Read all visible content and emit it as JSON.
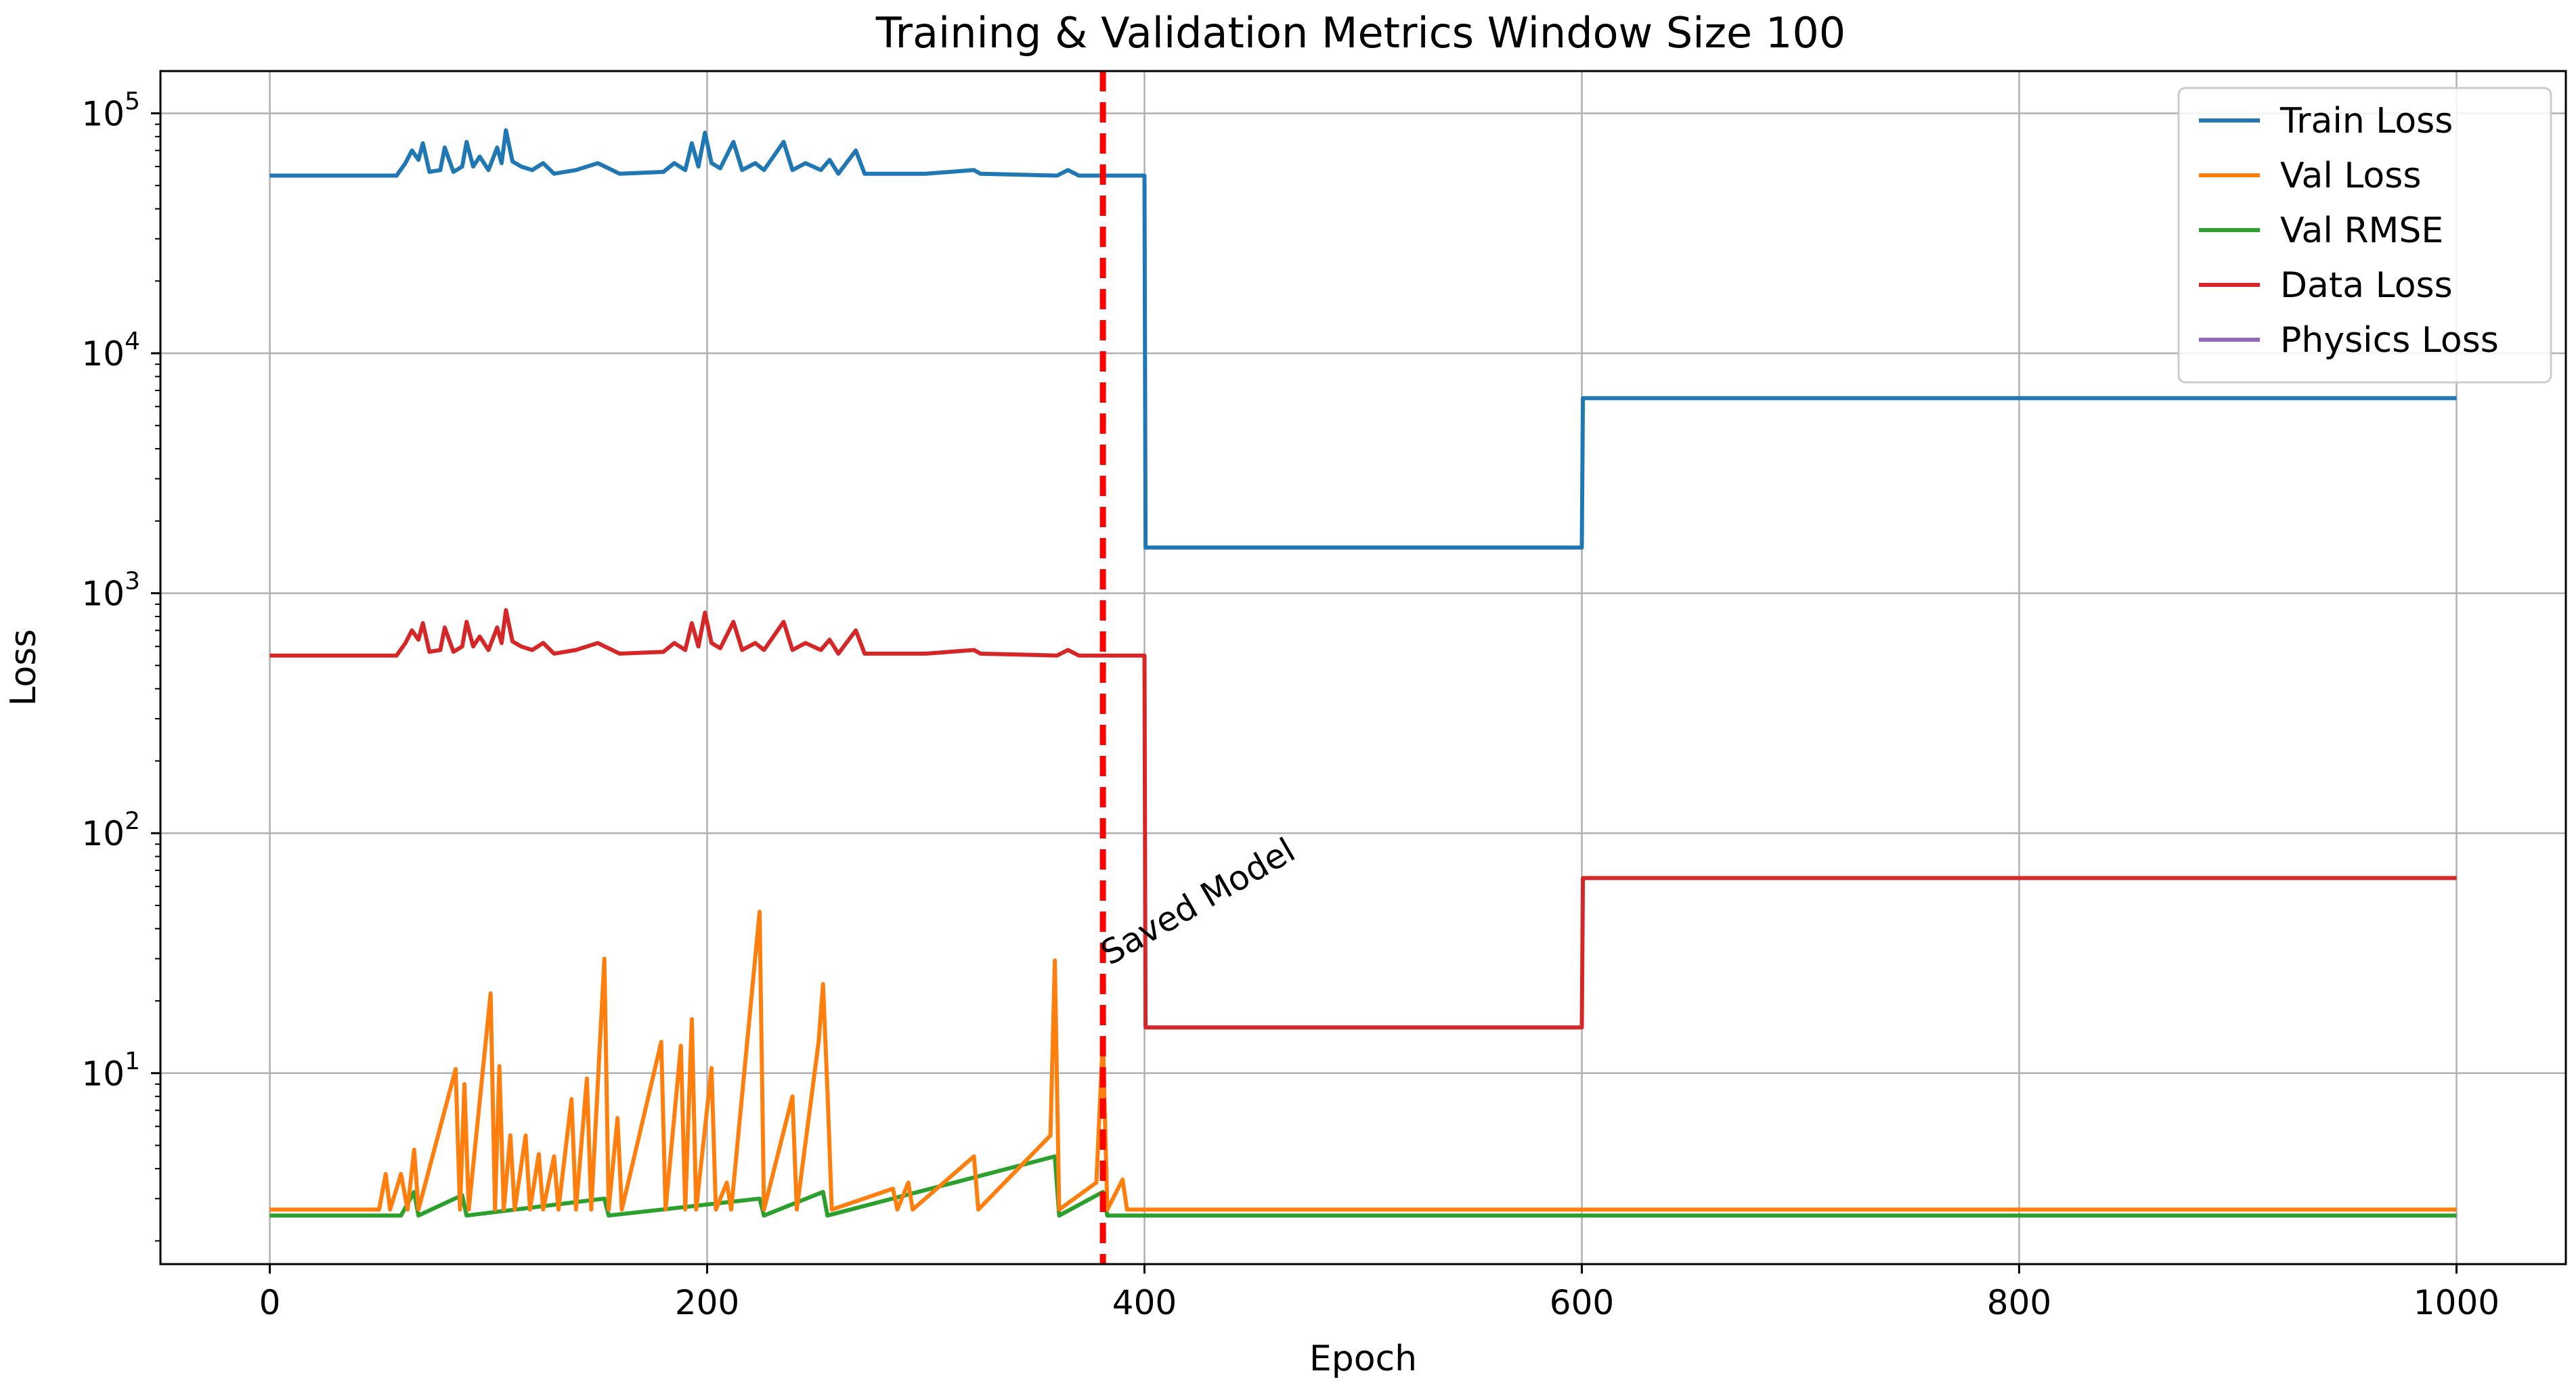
{
  "chart_data": {
    "type": "line",
    "title": "Training & Validation Metrics Window Size 100",
    "xlabel": "Epoch",
    "ylabel": "Loss",
    "yscale": "log",
    "xlim": [
      -50,
      1050
    ],
    "ylim": [
      1.6,
      150000
    ],
    "xticks": [
      0,
      200,
      400,
      600,
      800,
      1000
    ],
    "xtick_labels": [
      "0",
      "200",
      "400",
      "600",
      "800",
      "1000"
    ],
    "yticks": [
      10,
      100,
      1000,
      10000,
      100000
    ],
    "ytick_labels": [
      {
        "base": "10",
        "exp": "1"
      },
      {
        "base": "10",
        "exp": "2"
      },
      {
        "base": "10",
        "exp": "3"
      },
      {
        "base": "10",
        "exp": "4"
      },
      {
        "base": "10",
        "exp": "5"
      }
    ],
    "grid": true,
    "legend_position": "top-right",
    "colors": {
      "train_loss": "#1f77b4",
      "val_loss": "#ff7f0e",
      "val_rmse": "#2ca02c",
      "data_loss": "#d62728",
      "physics_loss": "#9467bd",
      "saved_line": "#ff0000"
    },
    "series": [
      {
        "name": "Train Loss",
        "color": "#1f77b4",
        "points": [
          [
            0,
            55000
          ],
          [
            58,
            55000
          ],
          [
            62,
            62000
          ],
          [
            65,
            70000
          ],
          [
            68,
            64000
          ],
          [
            70,
            75000
          ],
          [
            73,
            57000
          ],
          [
            78,
            58000
          ],
          [
            80,
            72000
          ],
          [
            84,
            57000
          ],
          [
            88,
            60000
          ],
          [
            90,
            76000
          ],
          [
            93,
            60000
          ],
          [
            96,
            66000
          ],
          [
            100,
            58000
          ],
          [
            104,
            72000
          ],
          [
            106,
            62000
          ],
          [
            108,
            85000
          ],
          [
            111,
            63000
          ],
          [
            115,
            60000
          ],
          [
            120,
            58000
          ],
          [
            125,
            62000
          ],
          [
            130,
            56000
          ],
          [
            140,
            58000
          ],
          [
            150,
            62000
          ],
          [
            160,
            56000
          ],
          [
            180,
            57000
          ],
          [
            185,
            62000
          ],
          [
            190,
            58000
          ],
          [
            193,
            75000
          ],
          [
            196,
            60000
          ],
          [
            199,
            83000
          ],
          [
            202,
            62000
          ],
          [
            206,
            59000
          ],
          [
            212,
            76000
          ],
          [
            216,
            58000
          ],
          [
            222,
            62000
          ],
          [
            226,
            58000
          ],
          [
            235,
            76000
          ],
          [
            239,
            58000
          ],
          [
            245,
            62000
          ],
          [
            252,
            58000
          ],
          [
            256,
            64000
          ],
          [
            260,
            56000
          ],
          [
            268,
            70000
          ],
          [
            272,
            56000
          ],
          [
            300,
            56000
          ],
          [
            322,
            58000
          ],
          [
            325,
            56000
          ],
          [
            360,
            55000
          ],
          [
            365,
            58000
          ],
          [
            370,
            55000
          ],
          [
            400,
            55000
          ],
          [
            400.5,
            1550
          ],
          [
            600,
            1550
          ],
          [
            600.5,
            6500
          ],
          [
            1000,
            6500
          ]
        ]
      },
      {
        "name": "Val Loss",
        "color": "#ff7f0e",
        "points": [
          [
            0,
            2.7
          ],
          [
            50,
            2.7
          ],
          [
            53,
            3.8
          ],
          [
            55,
            2.7
          ],
          [
            60,
            3.8
          ],
          [
            63,
            2.7
          ],
          [
            66,
            4.8
          ],
          [
            68,
            2.7
          ],
          [
            85,
            10.4
          ],
          [
            87,
            2.7
          ],
          [
            89,
            9.0
          ],
          [
            91,
            2.7
          ],
          [
            101,
            21.5
          ],
          [
            103,
            2.7
          ],
          [
            105,
            10.7
          ],
          [
            107,
            2.7
          ],
          [
            110,
            5.5
          ],
          [
            112,
            2.7
          ],
          [
            117,
            5.5
          ],
          [
            119,
            2.7
          ],
          [
            123,
            4.6
          ],
          [
            125,
            2.7
          ],
          [
            130,
            4.5
          ],
          [
            132,
            2.7
          ],
          [
            138,
            7.8
          ],
          [
            140,
            2.7
          ],
          [
            145,
            9.5
          ],
          [
            147,
            2.7
          ],
          [
            153,
            30.0
          ],
          [
            155,
            2.7
          ],
          [
            159,
            6.5
          ],
          [
            161,
            2.7
          ],
          [
            179,
            13.5
          ],
          [
            181,
            2.7
          ],
          [
            188,
            13.0
          ],
          [
            190,
            2.7
          ],
          [
            193,
            16.8
          ],
          [
            195,
            2.7
          ],
          [
            202,
            10.5
          ],
          [
            204,
            2.7
          ],
          [
            209,
            3.5
          ],
          [
            211,
            2.7
          ],
          [
            224,
            47.0
          ],
          [
            226,
            2.7
          ],
          [
            239,
            8.0
          ],
          [
            241,
            2.7
          ],
          [
            251,
            13.5
          ],
          [
            253,
            23.5
          ],
          [
            255,
            8.5
          ],
          [
            257,
            2.7
          ],
          [
            285,
            3.3
          ],
          [
            287,
            2.7
          ],
          [
            292,
            3.5
          ],
          [
            294,
            2.7
          ],
          [
            322,
            4.5
          ],
          [
            324,
            2.7
          ],
          [
            357,
            5.5
          ],
          [
            359,
            29.5
          ],
          [
            361,
            2.7
          ],
          [
            378,
            3.5
          ],
          [
            381,
            14.0
          ],
          [
            383,
            2.7
          ],
          [
            390,
            3.6
          ],
          [
            392,
            2.7
          ],
          [
            1000,
            2.7
          ]
        ]
      },
      {
        "name": "Val RMSE",
        "color": "#2ca02c",
        "points": [
          [
            0,
            2.55
          ],
          [
            60,
            2.55
          ],
          [
            66,
            3.2
          ],
          [
            68,
            2.55
          ],
          [
            88,
            3.1
          ],
          [
            90,
            2.55
          ],
          [
            153,
            3.0
          ],
          [
            155,
            2.55
          ],
          [
            224,
            3.0
          ],
          [
            226,
            2.55
          ],
          [
            253,
            3.2
          ],
          [
            255,
            2.55
          ],
          [
            359,
            4.5
          ],
          [
            361,
            2.55
          ],
          [
            381,
            3.2
          ],
          [
            383,
            2.55
          ],
          [
            1000,
            2.55
          ]
        ]
      },
      {
        "name": "Data Loss",
        "color": "#d62728",
        "points": [
          [
            0,
            550
          ],
          [
            58,
            550
          ],
          [
            62,
            620
          ],
          [
            65,
            700
          ],
          [
            68,
            640
          ],
          [
            70,
            750
          ],
          [
            73,
            570
          ],
          [
            78,
            580
          ],
          [
            80,
            720
          ],
          [
            84,
            570
          ],
          [
            88,
            600
          ],
          [
            90,
            760
          ],
          [
            93,
            600
          ],
          [
            96,
            660
          ],
          [
            100,
            580
          ],
          [
            104,
            720
          ],
          [
            106,
            620
          ],
          [
            108,
            850
          ],
          [
            111,
            630
          ],
          [
            115,
            600
          ],
          [
            120,
            580
          ],
          [
            125,
            620
          ],
          [
            130,
            560
          ],
          [
            140,
            580
          ],
          [
            150,
            620
          ],
          [
            160,
            560
          ],
          [
            180,
            570
          ],
          [
            185,
            620
          ],
          [
            190,
            580
          ],
          [
            193,
            750
          ],
          [
            196,
            600
          ],
          [
            199,
            830
          ],
          [
            202,
            620
          ],
          [
            206,
            590
          ],
          [
            212,
            760
          ],
          [
            216,
            580
          ],
          [
            222,
            620
          ],
          [
            226,
            580
          ],
          [
            235,
            760
          ],
          [
            239,
            580
          ],
          [
            245,
            620
          ],
          [
            252,
            580
          ],
          [
            256,
            640
          ],
          [
            260,
            560
          ],
          [
            268,
            700
          ],
          [
            272,
            560
          ],
          [
            300,
            560
          ],
          [
            322,
            580
          ],
          [
            325,
            560
          ],
          [
            360,
            550
          ],
          [
            365,
            580
          ],
          [
            370,
            550
          ],
          [
            400,
            550
          ],
          [
            400.5,
            15.5
          ],
          [
            600,
            15.5
          ],
          [
            600.5,
            65
          ],
          [
            1000,
            65
          ]
        ]
      },
      {
        "name": "Physics Loss",
        "color": "#9467bd",
        "points": []
      }
    ],
    "annotations": [
      {
        "type": "vline",
        "x": 381,
        "style": "dashed",
        "color": "#ff0000",
        "text": "Saved Model"
      }
    ]
  }
}
